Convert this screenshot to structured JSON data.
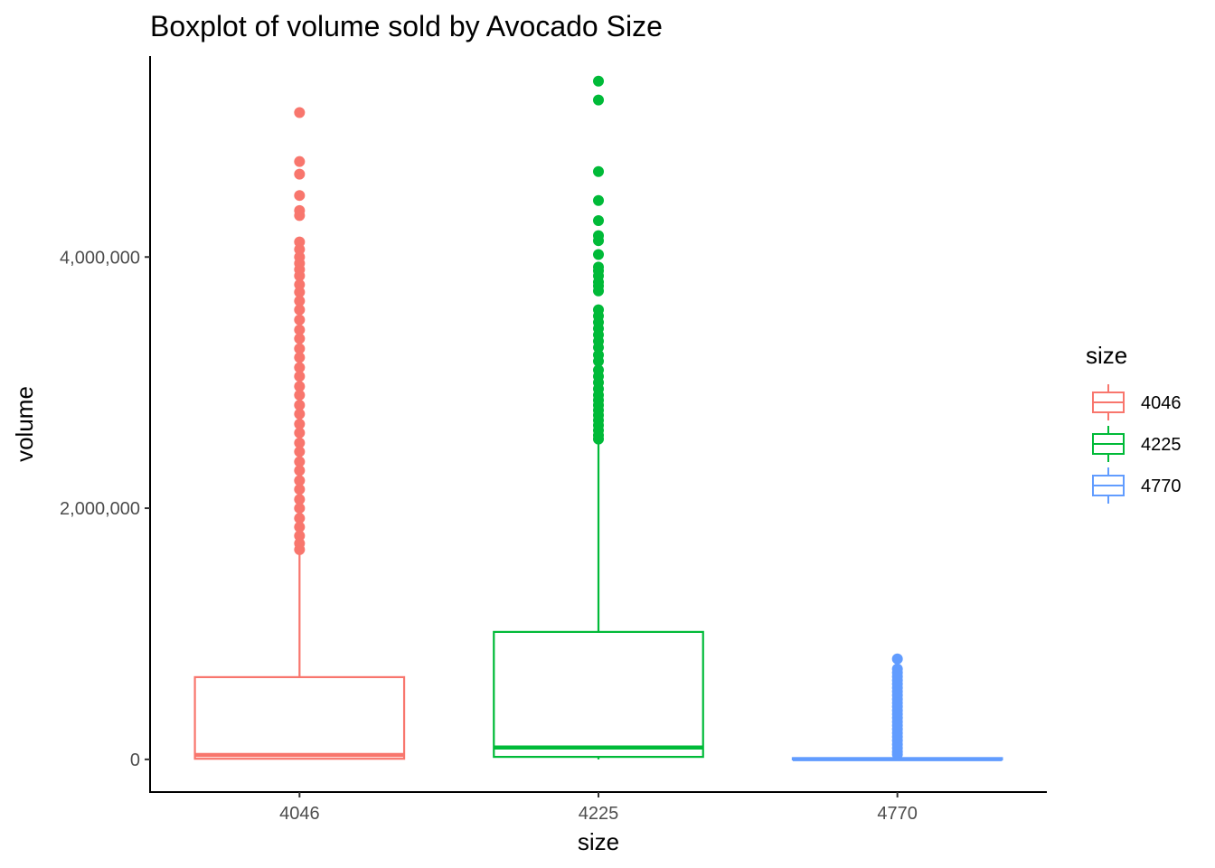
{
  "chart_data": {
    "type": "boxplot",
    "title": "Boxplot of volume sold by Avocado Size",
    "xlabel": "size",
    "ylabel": "volume",
    "ylim": [
      -260000,
      5600000
    ],
    "yticks": [
      0,
      2000000,
      4000000
    ],
    "ytick_labels": [
      "0",
      "2,000,000",
      "4,000,000"
    ],
    "categories": [
      "4046",
      "4225",
      "4770"
    ],
    "grid": false,
    "legend": {
      "title": "size",
      "position": "right",
      "entries": [
        "4046",
        "4225",
        "4770"
      ]
    },
    "series": [
      {
        "name": "4046",
        "color": "#F8766D",
        "q1": 5000,
        "median": 35000,
        "q3": 655000,
        "whisker_low": 0,
        "whisker_high": 1650000,
        "outliers": [
          5150000,
          4760000,
          4660000,
          4490000,
          4370000,
          4330000,
          4120000,
          4060000,
          4000000,
          3950000,
          3900000,
          3850000,
          3780000,
          3720000,
          3650000,
          3580000,
          3500000,
          3420000,
          3350000,
          3270000,
          3200000,
          3120000,
          3050000,
          2970000,
          2900000,
          2820000,
          2750000,
          2670000,
          2600000,
          2520000,
          2450000,
          2370000,
          2300000,
          2220000,
          2150000,
          2070000,
          2000000,
          1920000,
          1850000,
          1780000,
          1720000,
          1670000
        ]
      },
      {
        "name": "4225",
        "color": "#00BA38",
        "q1": 20000,
        "median": 95000,
        "q3": 1015000,
        "whisker_low": 0,
        "whisker_high": 2520000,
        "outliers": [
          5400000,
          5250000,
          4680000,
          4450000,
          4290000,
          4170000,
          4130000,
          4020000,
          3920000,
          3890000,
          3850000,
          3800000,
          3770000,
          3730000,
          3580000,
          3530000,
          3480000,
          3430000,
          3380000,
          3330000,
          3280000,
          3220000,
          3170000,
          3100000,
          3050000,
          3000000,
          2950000,
          2900000,
          2860000,
          2820000,
          2780000,
          2740000,
          2700000,
          2660000,
          2620000,
          2580000,
          2550000
        ]
      },
      {
        "name": "4770",
        "color": "#619CFF",
        "q1": 0,
        "median": 2000,
        "q3": 10000,
        "whisker_low": 0,
        "whisker_high": 25000,
        "outliers": [
          800000,
          720000,
          690000,
          660000,
          630000,
          600000,
          570000,
          540000,
          510000,
          480000,
          450000,
          420000,
          390000,
          360000,
          330000,
          300000,
          270000,
          240000,
          210000,
          180000,
          150000,
          120000,
          90000,
          60000,
          40000
        ]
      }
    ]
  }
}
